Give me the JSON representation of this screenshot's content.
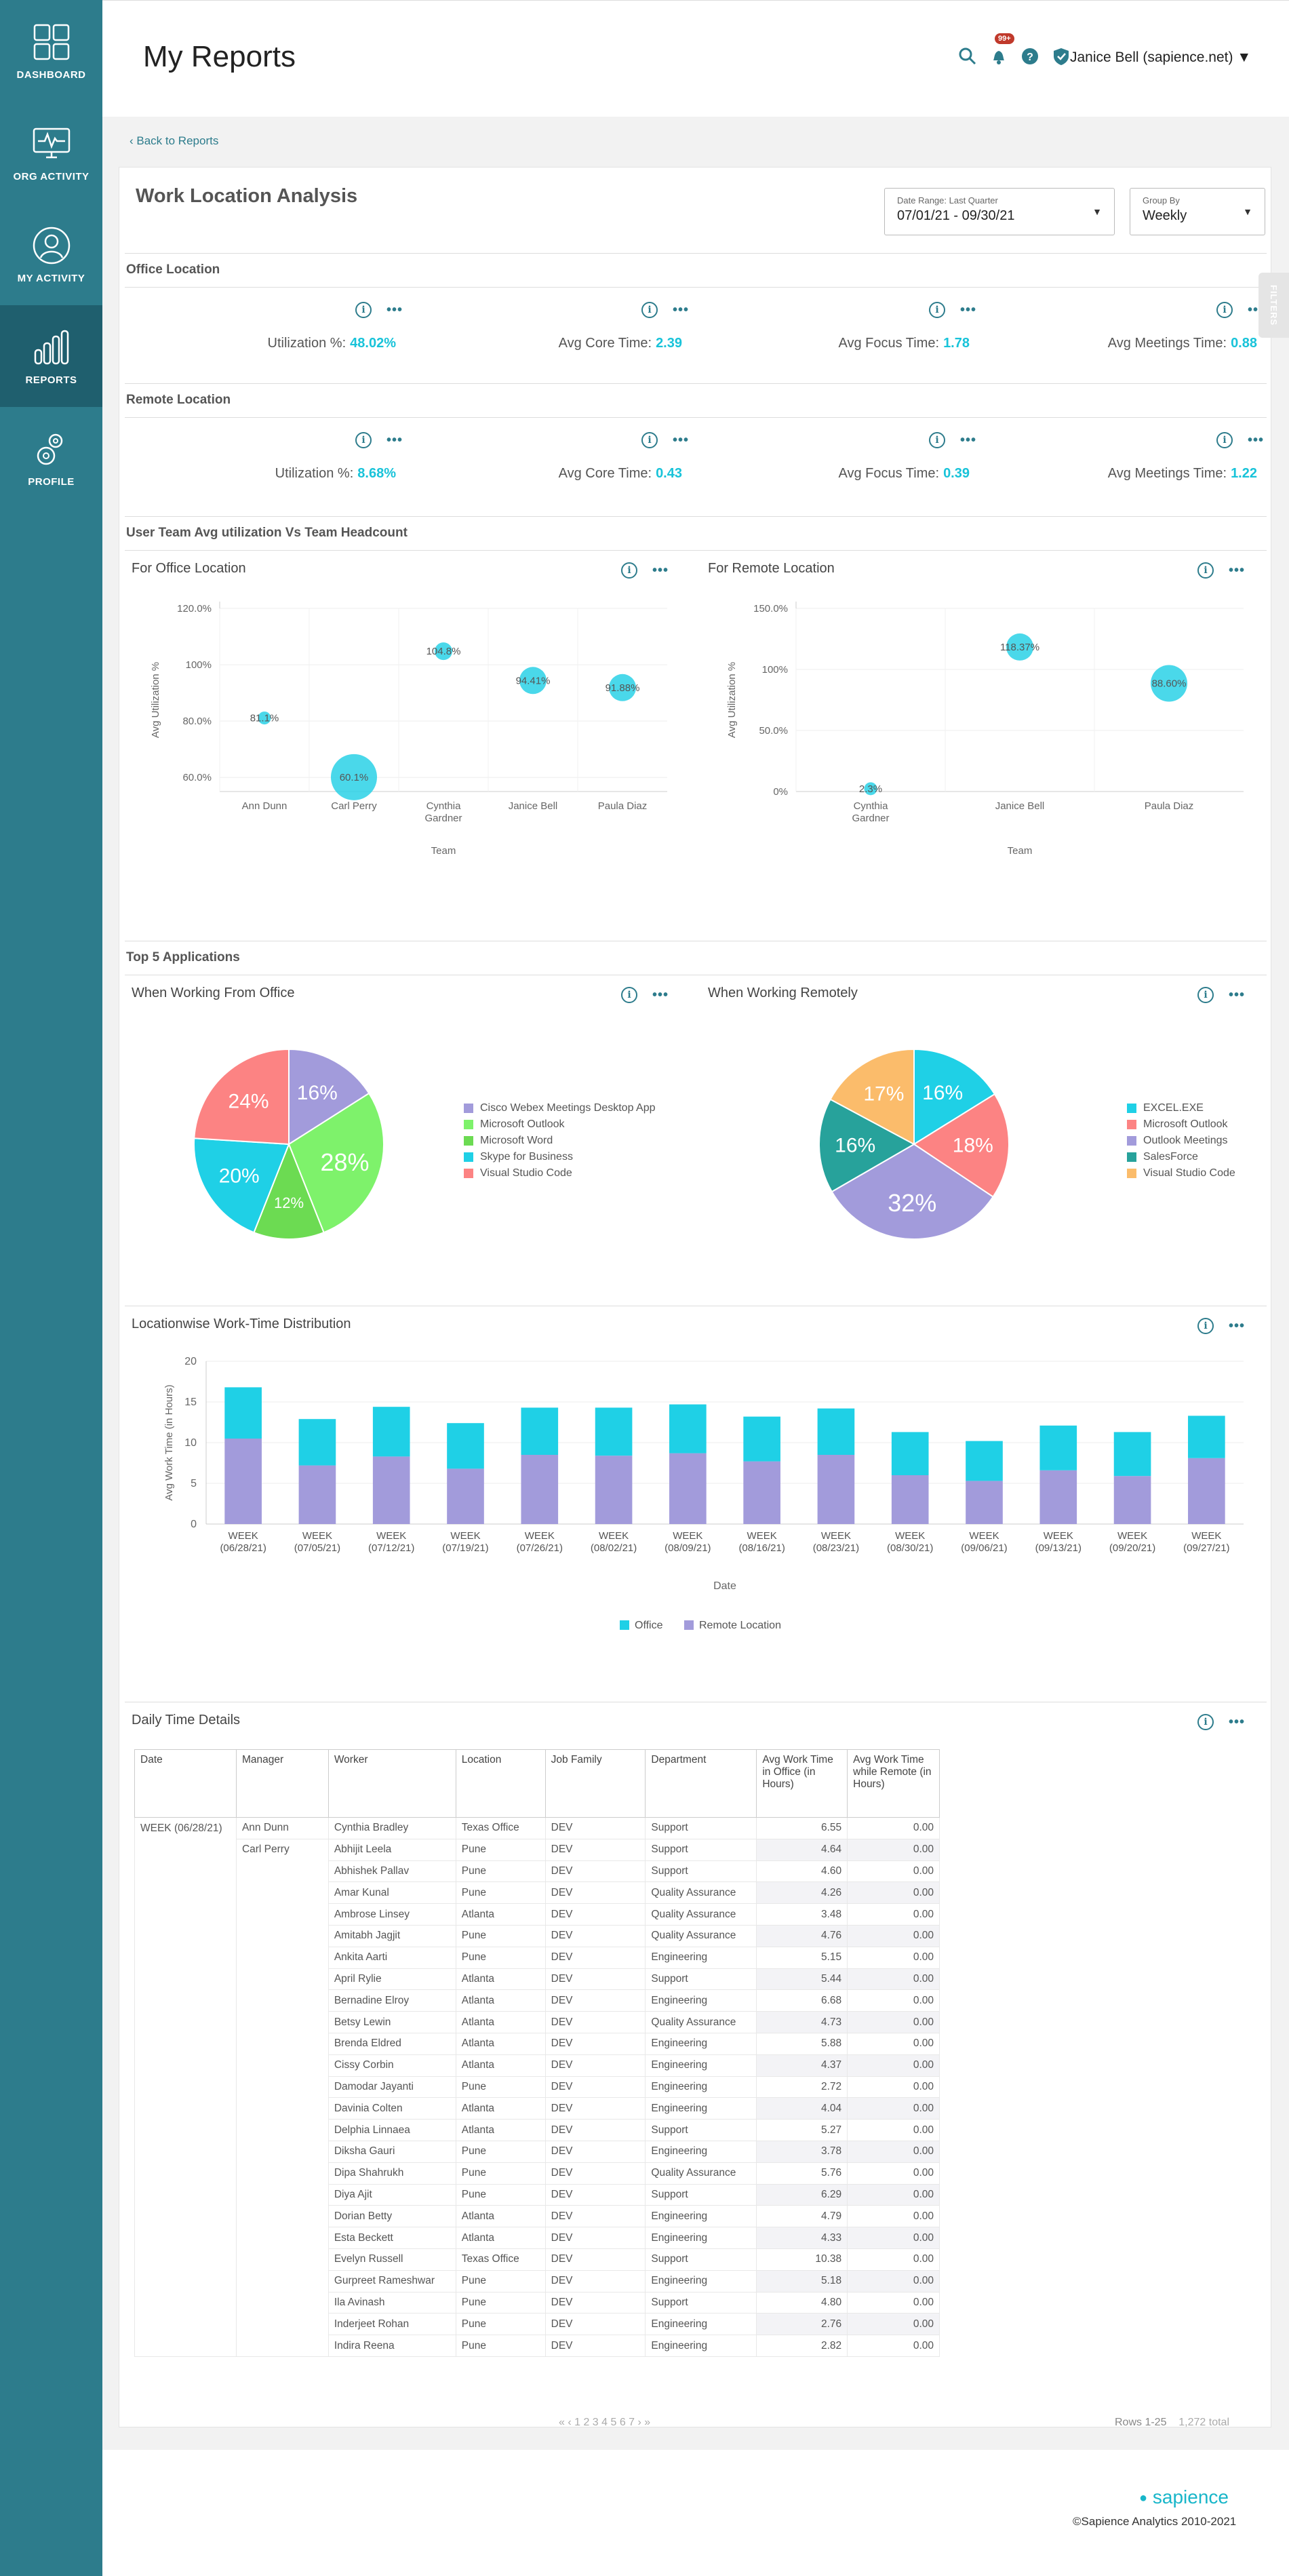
{
  "sidebar": {
    "items": [
      {
        "label": "DASHBOARD",
        "icon": "dashboard-icon"
      },
      {
        "label": "ORG ACTIVITY",
        "icon": "monitor-icon"
      },
      {
        "label": "MY ACTIVITY",
        "icon": "user-icon"
      },
      {
        "label": "REPORTS",
        "icon": "bar-chart-icon",
        "active": true
      },
      {
        "label": "PROFILE",
        "icon": "gears-icon"
      }
    ]
  },
  "header": {
    "title": "My Reports",
    "notification_badge": "99+",
    "user": "Janice Bell (sapience.net)"
  },
  "back_link": "Back to Reports",
  "report": {
    "title": "Work Location Analysis",
    "date_range": {
      "label": "Date Range: Last Quarter",
      "value": "07/01/21 - 09/30/21"
    },
    "group_by": {
      "label": "Group By",
      "value": "Weekly"
    },
    "filters_tab": "FILTERS"
  },
  "office_location": {
    "heading": "Office Location",
    "metrics": [
      {
        "label": "Utilization %:",
        "value": "48.02%"
      },
      {
        "label": "Avg Core Time:",
        "value": "2.39"
      },
      {
        "label": "Avg Focus Time:",
        "value": "1.78"
      },
      {
        "label": "Avg Meetings Time:",
        "value": "0.88"
      }
    ]
  },
  "remote_location": {
    "heading": "Remote Location",
    "metrics": [
      {
        "label": "Utilization %:",
        "value": "8.68%"
      },
      {
        "label": "Avg Core Time:",
        "value": "0.43"
      },
      {
        "label": "Avg Focus Time:",
        "value": "0.39"
      },
      {
        "label": "Avg Meetings Time:",
        "value": "1.22"
      }
    ]
  },
  "team_section": {
    "heading": "User Team Avg utilization  Vs Team Headcount"
  },
  "apps_section": {
    "heading": "Top 5 Applications"
  },
  "table_section": {
    "title": "Daily Time Details",
    "headers": [
      "Date",
      "Manager",
      "Worker",
      "Location",
      "Job Family",
      "Department",
      "Avg Work Time in Office (in Hours)",
      "Avg Work Time while Remote (in Hours)"
    ],
    "group_date": "WEEK (06/28/21)",
    "rows": [
      {
        "manager": "Ann Dunn",
        "worker": "Cynthia Bradley",
        "location": "Texas Office",
        "job": "DEV",
        "dept": "Support",
        "office": "6.55",
        "remote": "0.00"
      },
      {
        "manager": "Carl Perry",
        "worker": "Abhijit Leela",
        "location": "Pune",
        "job": "DEV",
        "dept": "Support",
        "office": "4.64",
        "remote": "0.00"
      },
      {
        "manager": "",
        "worker": "Abhishek Pallav",
        "location": "Pune",
        "job": "DEV",
        "dept": "Support",
        "office": "4.60",
        "remote": "0.00"
      },
      {
        "manager": "",
        "worker": "Amar Kunal",
        "location": "Pune",
        "job": "DEV",
        "dept": "Quality Assurance",
        "office": "4.26",
        "remote": "0.00"
      },
      {
        "manager": "",
        "worker": "Ambrose Linsey",
        "location": "Atlanta",
        "job": "DEV",
        "dept": "Quality Assurance",
        "office": "3.48",
        "remote": "0.00"
      },
      {
        "manager": "",
        "worker": "Amitabh Jagjit",
        "location": "Pune",
        "job": "DEV",
        "dept": "Quality Assurance",
        "office": "4.76",
        "remote": "0.00"
      },
      {
        "manager": "",
        "worker": "Ankita Aarti",
        "location": "Pune",
        "job": "DEV",
        "dept": "Engineering",
        "office": "5.15",
        "remote": "0.00"
      },
      {
        "manager": "",
        "worker": "April Rylie",
        "location": "Atlanta",
        "job": "DEV",
        "dept": "Support",
        "office": "5.44",
        "remote": "0.00"
      },
      {
        "manager": "",
        "worker": "Bernadine Elroy",
        "location": "Atlanta",
        "job": "DEV",
        "dept": "Engineering",
        "office": "6.68",
        "remote": "0.00"
      },
      {
        "manager": "",
        "worker": "Betsy Lewin",
        "location": "Atlanta",
        "job": "DEV",
        "dept": "Quality Assurance",
        "office": "4.73",
        "remote": "0.00"
      },
      {
        "manager": "",
        "worker": "Brenda Eldred",
        "location": "Atlanta",
        "job": "DEV",
        "dept": "Engineering",
        "office": "5.88",
        "remote": "0.00"
      },
      {
        "manager": "",
        "worker": "Cissy Corbin",
        "location": "Atlanta",
        "job": "DEV",
        "dept": "Engineering",
        "office": "4.37",
        "remote": "0.00"
      },
      {
        "manager": "",
        "worker": "Damodar Jayanti",
        "location": "Pune",
        "job": "DEV",
        "dept": "Engineering",
        "office": "2.72",
        "remote": "0.00"
      },
      {
        "manager": "",
        "worker": "Davinia Colten",
        "location": "Atlanta",
        "job": "DEV",
        "dept": "Engineering",
        "office": "4.04",
        "remote": "0.00"
      },
      {
        "manager": "",
        "worker": "Delphia Linnaea",
        "location": "Atlanta",
        "job": "DEV",
        "dept": "Support",
        "office": "5.27",
        "remote": "0.00"
      },
      {
        "manager": "",
        "worker": "Diksha Gauri",
        "location": "Pune",
        "job": "DEV",
        "dept": "Engineering",
        "office": "3.78",
        "remote": "0.00"
      },
      {
        "manager": "",
        "worker": "Dipa Shahrukh",
        "location": "Pune",
        "job": "DEV",
        "dept": "Quality Assurance",
        "office": "5.76",
        "remote": "0.00"
      },
      {
        "manager": "",
        "worker": "Diya Ajit",
        "location": "Pune",
        "job": "DEV",
        "dept": "Support",
        "office": "6.29",
        "remote": "0.00"
      },
      {
        "manager": "",
        "worker": "Dorian Betty",
        "location": "Atlanta",
        "job": "DEV",
        "dept": "Engineering",
        "office": "4.79",
        "remote": "0.00"
      },
      {
        "manager": "",
        "worker": "Esta Beckett",
        "location": "Atlanta",
        "job": "DEV",
        "dept": "Engineering",
        "office": "4.33",
        "remote": "0.00"
      },
      {
        "manager": "",
        "worker": "Evelyn Russell",
        "location": "Texas Office",
        "job": "DEV",
        "dept": "Support",
        "office": "10.38",
        "remote": "0.00"
      },
      {
        "manager": "",
        "worker": "Gurpreet Rameshwar",
        "location": "Pune",
        "job": "DEV",
        "dept": "Engineering",
        "office": "5.18",
        "remote": "0.00"
      },
      {
        "manager": "",
        "worker": "Ila Avinash",
        "location": "Pune",
        "job": "DEV",
        "dept": "Support",
        "office": "4.80",
        "remote": "0.00"
      },
      {
        "manager": "",
        "worker": "Inderjeet Rohan",
        "location": "Pune",
        "job": "DEV",
        "dept": "Engineering",
        "office": "2.76",
        "remote": "0.00"
      },
      {
        "manager": "",
        "worker": "Indira Reena",
        "location": "Pune",
        "job": "DEV",
        "dept": "Engineering",
        "office": "2.82",
        "remote": "0.00"
      }
    ],
    "pager": "« ‹ 1 2 3 4 5 6 7 › »",
    "rows_info": "Rows 1-25",
    "total": "1,272 total"
  },
  "footer": {
    "brand": "sapience",
    "copyright": "©Sapience Analytics 2010-2021"
  },
  "chart_data": [
    {
      "type": "scatter",
      "title": "For Office Location",
      "xlabel": "Team",
      "ylabel": "Avg Utilization %",
      "yticks": [
        "60.0%",
        "80.0%",
        "100%",
        "120.0%"
      ],
      "ylim": [
        55,
        120
      ],
      "categories": [
        "Ann Dunn",
        "Carl Perry",
        "Cynthia Gardner",
        "Janice Bell",
        "Paula Diaz"
      ],
      "values": [
        81.1,
        60.1,
        104.8,
        94.41,
        91.88
      ],
      "labels": [
        "81.1%",
        "60.1%",
        "104.8%",
        "94.41%",
        "91.88%"
      ],
      "bubble_size": [
        1,
        8,
        2,
        4,
        4
      ],
      "color": "#2ad1e6"
    },
    {
      "type": "scatter",
      "title": "For Remote Location",
      "xlabel": "Team",
      "ylabel": "Avg Utilization %",
      "yticks": [
        "0%",
        "50.0%",
        "100%",
        "150.0%"
      ],
      "ylim": [
        0,
        150
      ],
      "categories": [
        "Cynthia Gardner",
        "Janice Bell",
        "Paula Diaz"
      ],
      "values": [
        2.3,
        118.37,
        88.6
      ],
      "labels": [
        "2.3%",
        "118.37%",
        "88.60%"
      ],
      "bubble_size": [
        1,
        4,
        6
      ],
      "color": "#2ad1e6"
    },
    {
      "type": "pie",
      "title": "When Working From Office",
      "labels": [
        "Cisco Webex Meetings Desktop App",
        "Microsoft Outlook",
        "Microsoft Word",
        "Skype for Business",
        "Visual Studio Code"
      ],
      "values": [
        16,
        28,
        12,
        20,
        24
      ],
      "colors": [
        "#a29bdb",
        "#7ef26b",
        "#6cdb52",
        "#1fd0e6",
        "#fc8383"
      ]
    },
    {
      "type": "pie",
      "title": "When Working Remotely",
      "labels": [
        "EXCEL.EXE",
        "Microsoft Outlook",
        "Outlook Meetings",
        "SalesForce",
        "Visual Studio Code"
      ],
      "values": [
        16,
        18,
        32,
        16,
        17
      ],
      "colors": [
        "#1fd0e6",
        "#fc8383",
        "#a29bdb",
        "#27a29b",
        "#fbbc6b"
      ]
    },
    {
      "type": "bar",
      "stacked": true,
      "title": "Locationwise Work-Time Distribution",
      "xlabel": "Date",
      "ylabel": "Avg Work Time (in Hours)",
      "ylim": [
        0,
        20
      ],
      "yticks": [
        0,
        5,
        10,
        15,
        20
      ],
      "categories": [
        "WEEK (06/28/21)",
        "WEEK (07/05/21)",
        "WEEK (07/12/21)",
        "WEEK (07/19/21)",
        "WEEK (07/26/21)",
        "WEEK (08/02/21)",
        "WEEK (08/09/21)",
        "WEEK (08/16/21)",
        "WEEK (08/23/21)",
        "WEEK (08/30/21)",
        "WEEK (09/06/21)",
        "WEEK (09/13/21)",
        "WEEK (09/20/21)",
        "WEEK (09/27/21)"
      ],
      "series": [
        {
          "name": "Remote Location",
          "color": "#a29bdb",
          "values": [
            10.5,
            7.2,
            8.3,
            6.8,
            8.5,
            8.4,
            8.7,
            7.7,
            8.5,
            6.0,
            5.3,
            6.6,
            5.9,
            8.1
          ]
        },
        {
          "name": "Office",
          "color": "#1fd0e6",
          "values": [
            6.3,
            5.7,
            6.1,
            5.6,
            5.8,
            5.9,
            6.0,
            5.5,
            5.7,
            5.3,
            4.9,
            5.5,
            5.4,
            5.2
          ]
        }
      ]
    }
  ]
}
